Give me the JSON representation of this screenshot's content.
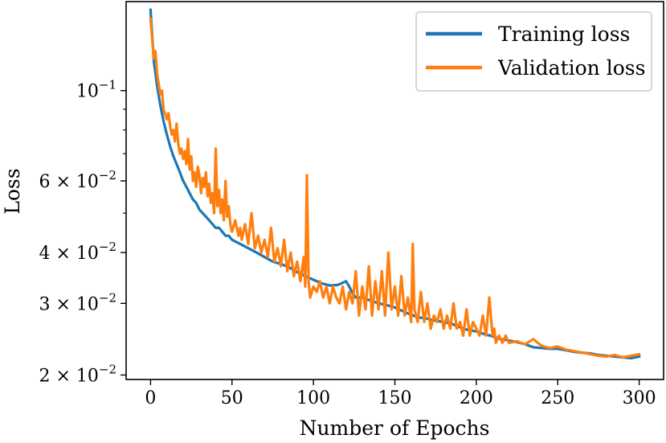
{
  "chart_data": {
    "type": "line",
    "title": "",
    "xlabel": "Number of Epochs",
    "ylabel": "Loss",
    "xscale": "linear",
    "yscale": "log",
    "xlim": [
      -15,
      315
    ],
    "ylim": [
      0.0195,
      0.1655
    ],
    "grid": false,
    "legend_position": "top-right",
    "x_ticks": [
      {
        "value": 0,
        "label": "0"
      },
      {
        "value": 50,
        "label": "50"
      },
      {
        "value": 100,
        "label": "100"
      },
      {
        "value": 150,
        "label": "150"
      },
      {
        "value": 200,
        "label": "200"
      },
      {
        "value": 250,
        "label": "250"
      },
      {
        "value": 300,
        "label": "300"
      }
    ],
    "y_ticks": [
      {
        "value": 0.1,
        "base": "10",
        "exponent": "−1",
        "mantissa": ""
      },
      {
        "value": 0.06,
        "base": "10",
        "exponent": "−2",
        "mantissa": "6 × "
      },
      {
        "value": 0.04,
        "base": "10",
        "exponent": "−2",
        "mantissa": "4 × "
      },
      {
        "value": 0.03,
        "base": "10",
        "exponent": "−2",
        "mantissa": "3 × "
      },
      {
        "value": 0.02,
        "base": "10",
        "exponent": "−2",
        "mantissa": "2 × "
      }
    ],
    "y_minor_ticks": [
      0.09,
      0.08,
      0.07,
      0.05
    ],
    "series": [
      {
        "name": "Training loss",
        "color": "#1f77b4",
        "x": [
          0,
          2,
          4,
          6,
          8,
          10,
          12,
          14,
          16,
          18,
          20,
          22,
          24,
          26,
          28,
          30,
          32,
          34,
          36,
          38,
          40,
          42,
          44,
          46,
          48,
          50,
          55,
          60,
          65,
          70,
          75,
          80,
          85,
          90,
          95,
          100,
          105,
          110,
          115,
          120,
          122,
          124,
          126,
          130,
          135,
          140,
          145,
          150,
          155,
          160,
          165,
          170,
          175,
          180,
          185,
          190,
          195,
          200,
          205,
          210,
          215,
          220,
          225,
          230,
          235,
          240,
          245,
          250,
          255,
          260,
          265,
          270,
          275,
          280,
          285,
          290,
          295,
          300
        ],
        "values": [
          0.158,
          0.118,
          0.103,
          0.092,
          0.084,
          0.078,
          0.073,
          0.069,
          0.066,
          0.063,
          0.06,
          0.058,
          0.056,
          0.054,
          0.053,
          0.051,
          0.05,
          0.049,
          0.048,
          0.047,
          0.046,
          0.046,
          0.045,
          0.044,
          0.044,
          0.043,
          0.042,
          0.041,
          0.04,
          0.039,
          0.038,
          0.0375,
          0.0368,
          0.0358,
          0.035,
          0.0343,
          0.0336,
          0.0332,
          0.0333,
          0.034,
          0.033,
          0.0318,
          0.031,
          0.031,
          0.0305,
          0.03,
          0.0297,
          0.0293,
          0.0287,
          0.0281,
          0.0277,
          0.0275,
          0.0272,
          0.027,
          0.0267,
          0.0262,
          0.0258,
          0.0256,
          0.0252,
          0.0249,
          0.0245,
          0.0243,
          0.0241,
          0.0238,
          0.0234,
          0.0233,
          0.0232,
          0.0232,
          0.023,
          0.0228,
          0.0227,
          0.0226,
          0.0224,
          0.0223,
          0.0222,
          0.0221,
          0.022,
          0.0222
        ]
      },
      {
        "name": "Validation loss",
        "color": "#ff7f0e",
        "x": [
          0,
          2,
          3,
          4,
          6,
          7,
          8,
          10,
          11,
          12,
          13,
          14,
          15,
          16,
          17,
          18,
          19,
          20,
          21,
          22,
          23,
          24,
          25,
          26,
          27,
          28,
          29,
          30,
          31,
          32,
          33,
          34,
          35,
          36,
          37,
          38,
          39,
          40,
          41,
          42,
          43,
          44,
          45,
          46,
          47,
          48,
          49,
          50,
          52,
          54,
          55,
          56,
          58,
          60,
          62,
          64,
          66,
          68,
          70,
          72,
          74,
          76,
          78,
          80,
          82,
          84,
          86,
          88,
          90,
          92,
          94,
          95,
          96,
          97,
          98,
          100,
          102,
          104,
          106,
          108,
          110,
          112,
          114,
          116,
          118,
          120,
          122,
          124,
          126,
          128,
          130,
          132,
          134,
          136,
          138,
          140,
          142,
          144,
          146,
          148,
          150,
          152,
          154,
          156,
          158,
          160,
          161,
          162,
          164,
          166,
          168,
          170,
          172,
          174,
          176,
          178,
          180,
          182,
          184,
          186,
          188,
          190,
          192,
          194,
          196,
          198,
          200,
          202,
          204,
          206,
          208,
          210,
          211,
          212,
          214,
          216,
          218,
          220,
          225,
          230,
          235,
          240,
          245,
          250,
          255,
          260,
          265,
          270,
          275,
          280,
          285,
          290,
          295,
          300
        ],
        "values": [
          0.15,
          0.12,
          0.125,
          0.11,
          0.098,
          0.1,
          0.09,
          0.085,
          0.088,
          0.082,
          0.078,
          0.08,
          0.075,
          0.083,
          0.074,
          0.07,
          0.072,
          0.068,
          0.071,
          0.066,
          0.076,
          0.064,
          0.069,
          0.06,
          0.063,
          0.058,
          0.065,
          0.062,
          0.056,
          0.061,
          0.058,
          0.063,
          0.055,
          0.059,
          0.053,
          0.056,
          0.05,
          0.072,
          0.052,
          0.057,
          0.05,
          0.054,
          0.048,
          0.06,
          0.049,
          0.052,
          0.047,
          0.045,
          0.048,
          0.044,
          0.046,
          0.043,
          0.047,
          0.042,
          0.05,
          0.041,
          0.044,
          0.04,
          0.043,
          0.039,
          0.046,
          0.038,
          0.041,
          0.037,
          0.043,
          0.036,
          0.04,
          0.035,
          0.038,
          0.034,
          0.039,
          0.033,
          0.062,
          0.034,
          0.031,
          0.033,
          0.032,
          0.034,
          0.031,
          0.033,
          0.03,
          0.033,
          0.031,
          0.03,
          0.033,
          0.029,
          0.032,
          0.03,
          0.036,
          0.028,
          0.033,
          0.029,
          0.037,
          0.028,
          0.034,
          0.029,
          0.036,
          0.028,
          0.04,
          0.029,
          0.033,
          0.028,
          0.035,
          0.028,
          0.031,
          0.027,
          0.042,
          0.029,
          0.027,
          0.032,
          0.027,
          0.03,
          0.026,
          0.028,
          0.027,
          0.029,
          0.026,
          0.028,
          0.026,
          0.03,
          0.026,
          0.027,
          0.025,
          0.029,
          0.025,
          0.027,
          0.026,
          0.025,
          0.028,
          0.025,
          0.031,
          0.025,
          0.026,
          0.024,
          0.025,
          0.024,
          0.025,
          0.024,
          0.0242,
          0.0238,
          0.0245,
          0.0236,
          0.0233,
          0.0235,
          0.0231,
          0.0229,
          0.0227,
          0.0225,
          0.0223,
          0.0222,
          0.0224,
          0.0221,
          0.0223,
          0.0225
        ]
      }
    ]
  }
}
